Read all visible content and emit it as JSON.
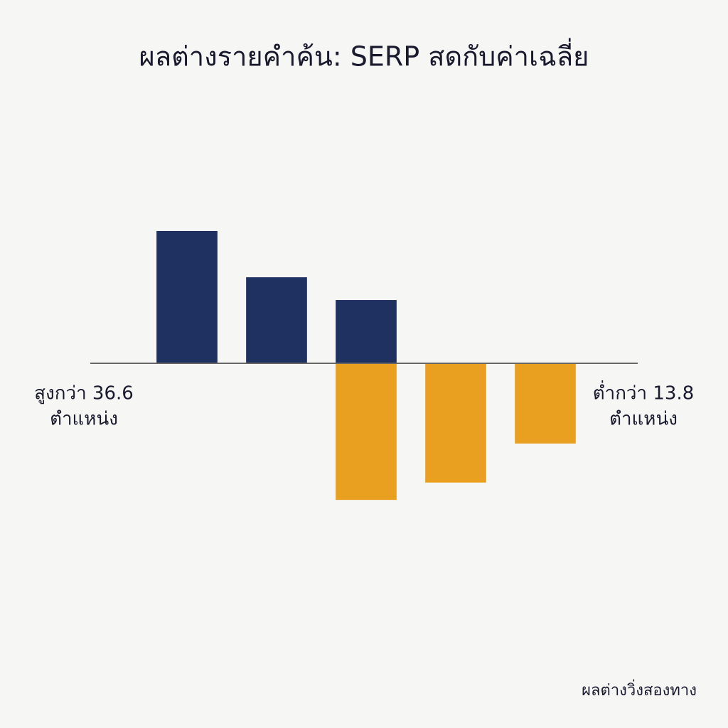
{
  "chart_data": {
    "type": "bar",
    "title": "ผลต่างรายคำค้น: SERP สดกับค่าเฉลี่ย",
    "categories": [
      null,
      null,
      null,
      null,
      null
    ],
    "series": [
      {
        "name": null,
        "color": "#1f3160",
        "values": [
          36.6,
          23.8,
          17.5,
          null,
          null
        ]
      },
      {
        "name": null,
        "color": "#e9a020",
        "values": [
          null,
          null,
          -37.8,
          -33.0,
          -22.2
        ]
      }
    ],
    "ylim": [
      -60,
      60
    ],
    "annotations": [
      [
        "สูงกว่า 36.6",
        "ตำแหน่ง"
      ],
      [
        "ต่ำกว่า 13.8",
        "ตำแหน่ง"
      ]
    ],
    "note": "ผลต่างวิ่งสองทาง"
  }
}
